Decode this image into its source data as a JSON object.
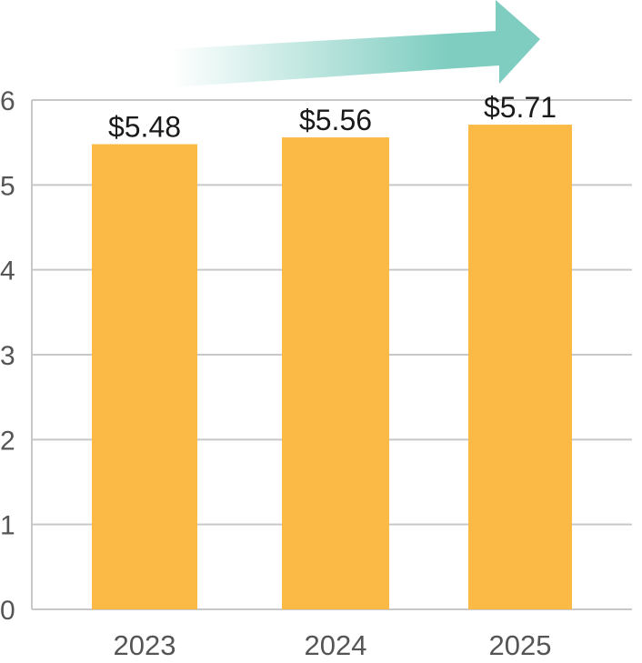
{
  "chart_data": {
    "type": "bar",
    "categories": [
      "2023",
      "2024",
      "2025"
    ],
    "values": [
      5.48,
      5.56,
      5.71
    ],
    "data_labels": [
      "$5.48",
      "$5.56",
      "$5.71"
    ],
    "y_ticks": [
      "0",
      "1",
      "2",
      "3",
      "4",
      "5",
      "6"
    ],
    "ylim": [
      0,
      6
    ],
    "grid": true,
    "trend_arrow": true
  },
  "colors": {
    "bar": "#FBB945",
    "grid": "#c8c8c8",
    "axis_text": "#555555",
    "label_text": "#1a1a1a",
    "arrow": "#7ecdc0"
  }
}
